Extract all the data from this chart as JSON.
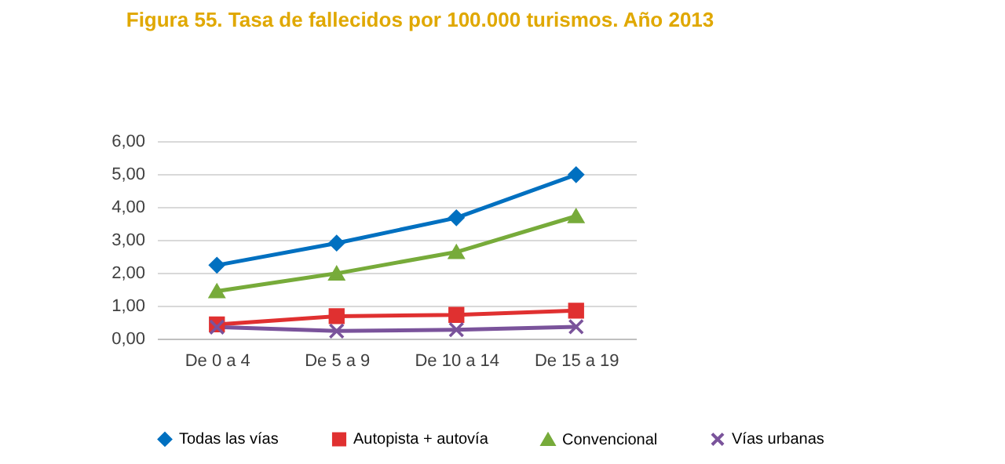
{
  "chart_data": {
    "type": "line",
    "title": "Figura 55. Tasa de fallecidos por 100.000 turismos. Año 2013",
    "categories": [
      "De 0 a 4",
      "De 5 a 9",
      "De 10 a 14",
      "De 15 a 19"
    ],
    "series": [
      {
        "name": "Todas las vías",
        "color": "#0070c0",
        "marker": "diamond",
        "values": [
          2.23,
          2.9,
          3.67,
          4.98
        ]
      },
      {
        "name": "Autopista + autovía",
        "color": "#e03030",
        "marker": "square",
        "values": [
          0.43,
          0.68,
          0.72,
          0.85
        ]
      },
      {
        "name": "Convencional",
        "color": "#77ab3a",
        "marker": "triangle",
        "values": [
          1.44,
          1.98,
          2.63,
          3.72
        ]
      },
      {
        "name": "Vías urbanas",
        "color": "#7a539b",
        "marker": "cross",
        "values": [
          0.35,
          0.23,
          0.27,
          0.36
        ]
      }
    ],
    "ylim": [
      0,
      6
    ],
    "yticks": [
      {
        "value": 0,
        "label": "0,00"
      },
      {
        "value": 1,
        "label": "1,00"
      },
      {
        "value": 2,
        "label": "2,00"
      },
      {
        "value": 3,
        "label": "3,00"
      },
      {
        "value": 4,
        "label": "4,00"
      },
      {
        "value": 5,
        "label": "5,00"
      },
      {
        "value": 6,
        "label": "6,00"
      }
    ],
    "grid": "y",
    "legend": "bottom",
    "line_style": "solid"
  }
}
